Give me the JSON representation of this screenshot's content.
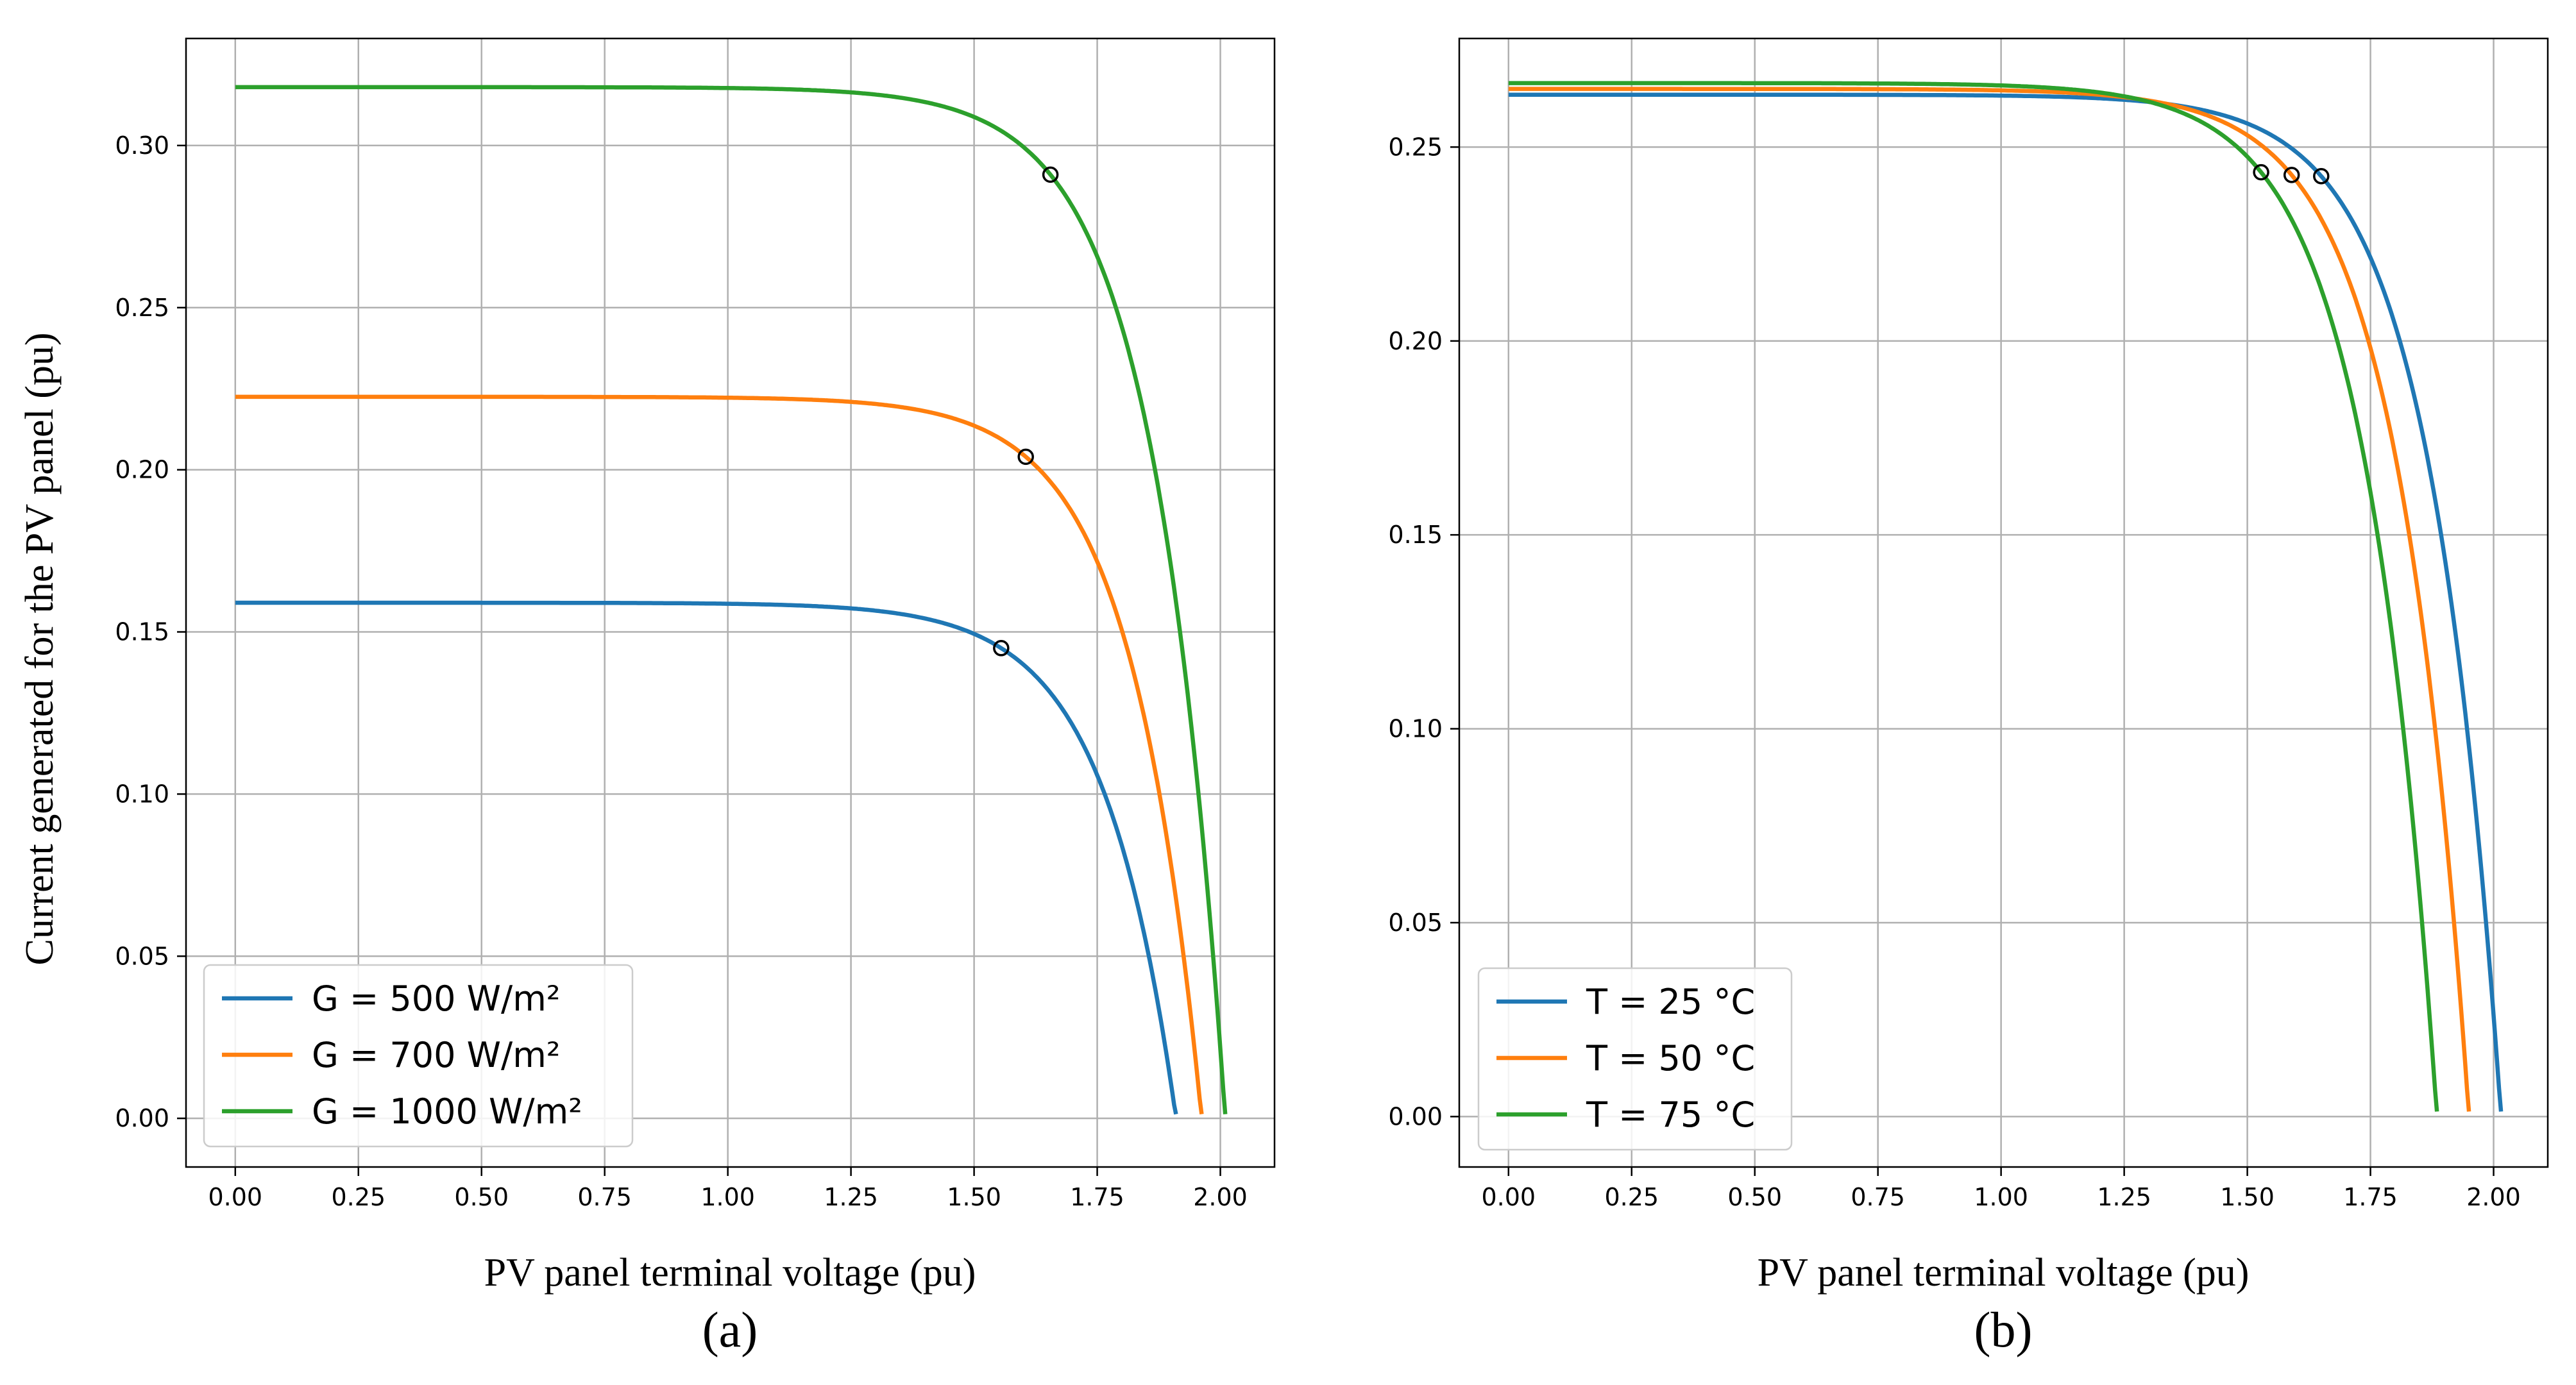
{
  "y_axis_title": "Current generated for the PV panel (pu)",
  "chart_data": [
    {
      "type": "line",
      "panel_label": "(a)",
      "title": "",
      "xlabel": "PV panel terminal voltage (pu)",
      "ylabel": "Current generated for the PV panel (pu)",
      "xlim": [
        -0.1,
        2.11
      ],
      "ylim": [
        -0.015,
        0.333
      ],
      "x_ticks": [
        "0.00",
        "0.25",
        "0.50",
        "0.75",
        "1.00",
        "1.25",
        "1.50",
        "1.75",
        "2.00"
      ],
      "y_ticks": [
        "0.00",
        "0.05",
        "0.10",
        "0.15",
        "0.20",
        "0.25",
        "0.30"
      ],
      "grid": true,
      "legend_position": "lower-left",
      "series": [
        {
          "name": "G = 500 W/m²",
          "color": "#1f77b4",
          "isc": 0.159,
          "voc": 1.91,
          "mpp": [
            1.555,
            0.145
          ]
        },
        {
          "name": "G = 700 W/m²",
          "color": "#ff7f0e",
          "isc": 0.2225,
          "voc": 1.962,
          "mpp": [
            1.605,
            0.204
          ]
        },
        {
          "name": "G = 1000 W/m²",
          "color": "#2ca02c",
          "isc": 0.318,
          "voc": 2.01,
          "mpp": [
            1.655,
            0.291
          ]
        }
      ]
    },
    {
      "type": "line",
      "panel_label": "(b)",
      "title": "",
      "xlabel": "PV panel terminal voltage (pu)",
      "ylabel": "",
      "xlim": [
        -0.1,
        2.11
      ],
      "ylim": [
        -0.013,
        0.278
      ],
      "x_ticks": [
        "0.00",
        "0.25",
        "0.50",
        "0.75",
        "1.00",
        "1.25",
        "1.50",
        "1.75",
        "2.00"
      ],
      "y_ticks": [
        "0.00",
        "0.05",
        "0.10",
        "0.15",
        "0.20",
        "0.25"
      ],
      "grid": true,
      "legend_position": "lower-left",
      "series": [
        {
          "name": "T = 25 °C",
          "color": "#1f77b4",
          "isc": 0.2635,
          "voc": 2.015,
          "mpp": [
            1.65,
            0.2425
          ]
        },
        {
          "name": "T = 50 °C",
          "color": "#ff7f0e",
          "isc": 0.265,
          "voc": 1.95,
          "mpp": [
            1.59,
            0.2428
          ]
        },
        {
          "name": "T = 75 °C",
          "color": "#2ca02c",
          "isc": 0.2665,
          "voc": 1.885,
          "mpp": [
            1.528,
            0.2435
          ]
        }
      ]
    }
  ]
}
